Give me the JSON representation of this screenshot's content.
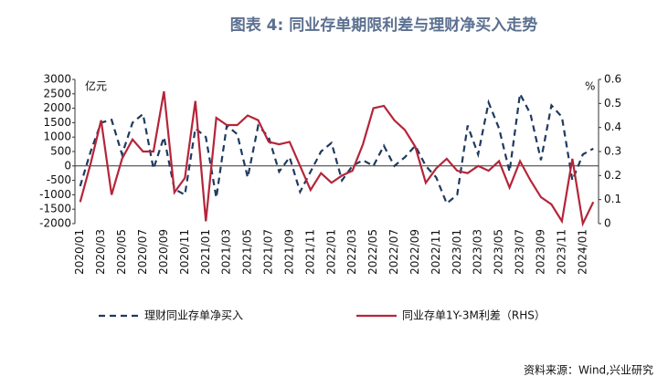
{
  "chart_data": {
    "type": "line",
    "title": "图表 4: 同业存单期限利差与理财净买入走势",
    "y_unit": "亿元",
    "y2_unit": "%",
    "source": "资料来源：Wind,兴业研究",
    "categories": [
      "2020/01",
      null,
      "2020/03",
      null,
      "2020/05",
      null,
      "2020/07",
      null,
      "2020/09",
      null,
      "2020/11",
      null,
      "2021/01",
      null,
      "2021/03",
      null,
      "2021/05",
      null,
      "2021/07",
      null,
      "2021/09",
      null,
      "2021/11",
      null,
      "2022/01",
      null,
      "2022/03",
      null,
      "2022/05",
      null,
      "2022/07",
      null,
      "2022/09",
      null,
      "2022/11",
      null,
      "2023/01",
      null,
      "2023/03",
      null,
      "2023/05",
      null,
      "2023/07",
      null,
      "2023/09",
      null,
      "2023/11",
      null,
      "2024/01",
      null
    ],
    "ylim": [
      -2000,
      3000
    ],
    "yticks": [
      -2000,
      -1500,
      -1000,
      -500,
      0,
      500,
      1000,
      1500,
      2000,
      2500,
      3000
    ],
    "y2lim": [
      0,
      0.6
    ],
    "y2ticks": [
      0,
      0.1,
      0.2,
      0.3,
      0.4,
      0.5,
      0.6
    ],
    "series": [
      {
        "name": "理财同业存单净买入",
        "color": "#1f3a5f",
        "dash": true,
        "values": [
          -700,
          500,
          1500,
          1600,
          400,
          1500,
          1800,
          -100,
          1000,
          -800,
          -1000,
          1300,
          1000,
          -1100,
          1400,
          1100,
          -400,
          1400,
          1000,
          -200,
          300,
          -900,
          -200,
          500,
          800,
          -500,
          0,
          200,
          0,
          700,
          0,
          300,
          700,
          0,
          -400,
          -1300,
          -1000,
          1400,
          400,
          2200,
          1300,
          -200,
          2500,
          1800,
          200,
          2100,
          1700,
          -500,
          400,
          600
        ]
      },
      {
        "name": "同业存单1Y-3M利差（RHS）",
        "color": "#b5253a",
        "axis": "y2",
        "values": [
          0.09,
          0.25,
          0.43,
          0.12,
          0.27,
          0.35,
          0.3,
          0.3,
          0.55,
          0.13,
          0.19,
          0.51,
          0.01,
          0.44,
          0.41,
          0.41,
          0.45,
          0.43,
          0.34,
          0.33,
          0.34,
          0.24,
          0.14,
          0.21,
          0.17,
          0.2,
          0.22,
          0.33,
          0.48,
          0.49,
          0.43,
          0.39,
          0.32,
          0.17,
          0.23,
          0.27,
          0.22,
          0.21,
          0.24,
          0.22,
          0.26,
          0.15,
          0.26,
          0.18,
          0.11,
          0.08,
          0.01,
          0.27,
          0.0,
          0.09
        ]
      }
    ]
  }
}
